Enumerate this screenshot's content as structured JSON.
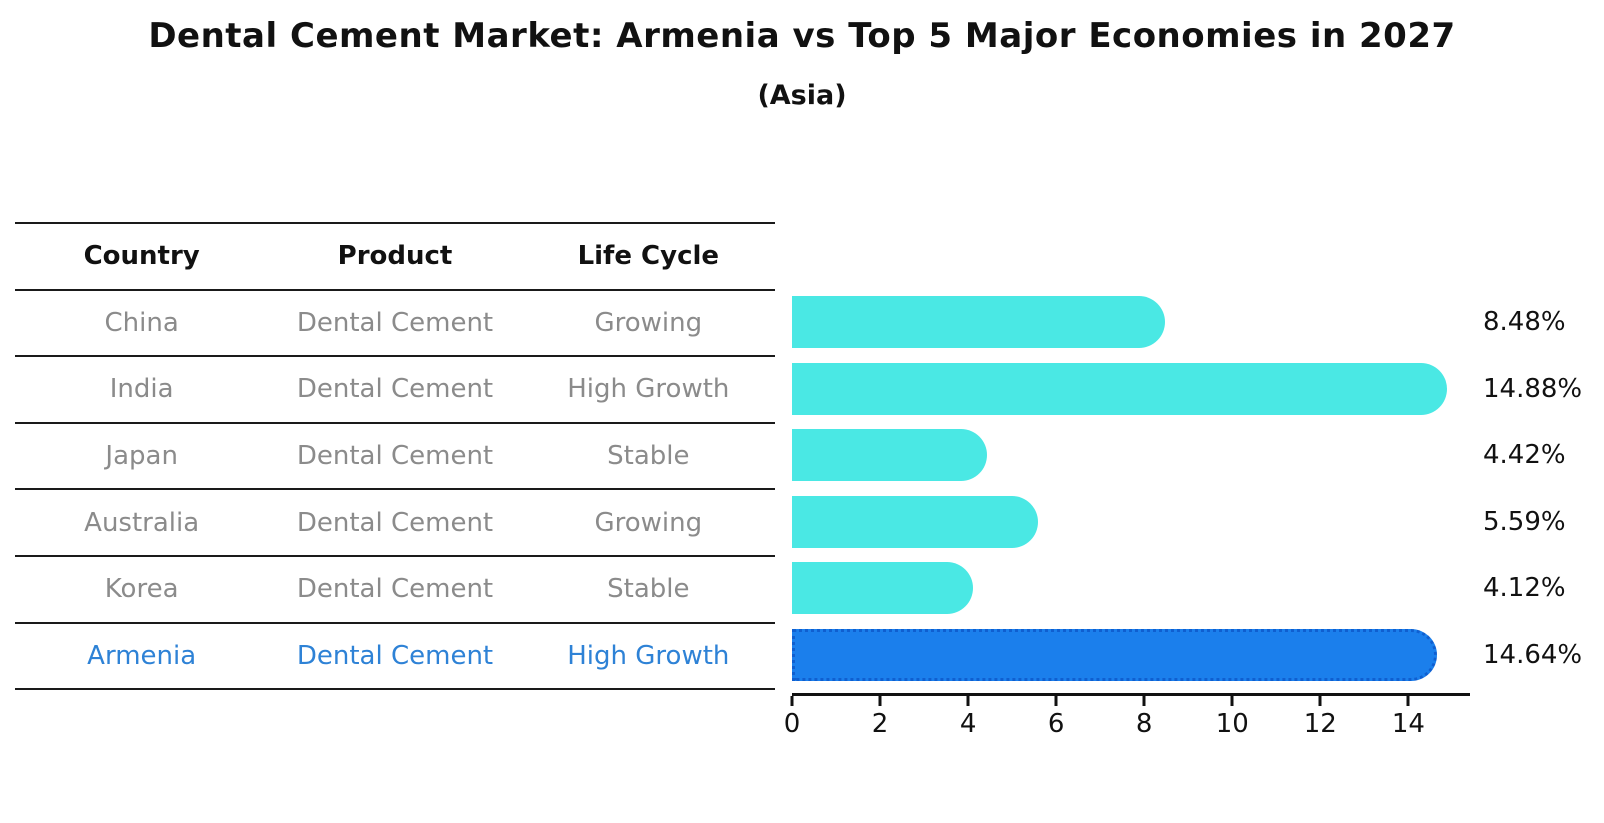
{
  "chart_data": {
    "type": "bar",
    "orientation": "horizontal",
    "title": "Dental Cement Market: Armenia vs Top 5 Major Economies in 2027",
    "subtitle": "(Asia)",
    "categories": [
      "China",
      "India",
      "Japan",
      "Australia",
      "Korea",
      "Armenia"
    ],
    "values": [
      8.48,
      14.88,
      4.42,
      5.59,
      4.12,
      14.64
    ],
    "value_labels": [
      "8.48%",
      "14.88%",
      "4.42%",
      "5.59%",
      "4.12%",
      "14.64%"
    ],
    "xlabel": "",
    "ylabel": "",
    "xlim": [
      0,
      15.4
    ],
    "xticks": [
      0,
      2,
      4,
      6,
      8,
      10,
      12,
      14
    ],
    "grid": false,
    "legend": false,
    "bar_color": "#4ae8e4",
    "highlight_index": 5,
    "highlight_bar_color": "#1b7fec",
    "highlight_border_color": "#0f5fd0",
    "highlight_border_style": "dotted"
  },
  "table": {
    "headers": [
      "Country",
      "Product",
      "Life Cycle"
    ],
    "rows": [
      {
        "country": "China",
        "product": "Dental Cement",
        "life_cycle": "Growing",
        "highlight": false
      },
      {
        "country": "India",
        "product": "Dental Cement",
        "life_cycle": "High Growth",
        "highlight": false
      },
      {
        "country": "Japan",
        "product": "Dental Cement",
        "life_cycle": "Stable",
        "highlight": false
      },
      {
        "country": "Australia",
        "product": "Dental Cement",
        "life_cycle": "Growing",
        "highlight": false
      },
      {
        "country": "Korea",
        "product": "Dental Cement",
        "life_cycle": "Stable",
        "highlight": false
      },
      {
        "country": "Armenia",
        "product": "Dental Cement",
        "life_cycle": "High Growth",
        "highlight": true
      }
    ]
  },
  "colors": {
    "background": "#ffffff",
    "title_text": "#111111",
    "table_text_gray": "#8b8b8b",
    "table_line": "#1a1a1a",
    "axis": "#111111",
    "highlight_row_text": "#2e82d6"
  }
}
